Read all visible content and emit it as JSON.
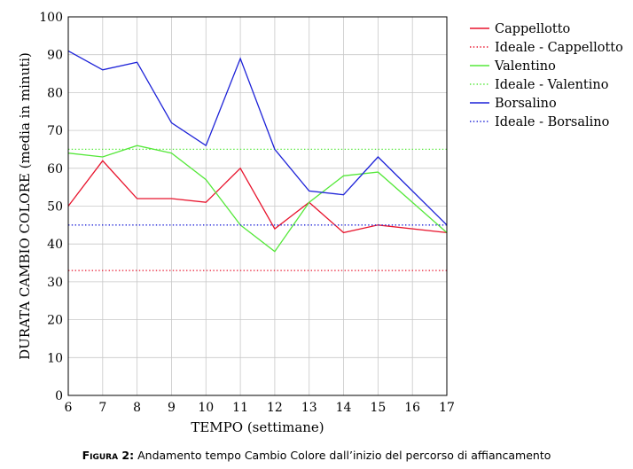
{
  "chart_data": {
    "type": "line",
    "title": "",
    "xlabel": "TEMPO (settimane)",
    "ylabel": "DURATA CAMBIO COLORE (media in minuti)",
    "xlim": [
      6,
      17
    ],
    "ylim": [
      0,
      100
    ],
    "x_ticks": [
      "6",
      "7",
      "8",
      "9",
      "10",
      "11",
      "12",
      "13",
      "14",
      "15",
      "16",
      "17"
    ],
    "y_ticks": [
      "0",
      "10",
      "20",
      "30",
      "40",
      "50",
      "60",
      "70",
      "80",
      "90",
      "100"
    ],
    "grid": true,
    "legend_position": "outside-right-top",
    "series": [
      {
        "name": "Cappellotto",
        "color": "#e8142d",
        "style": "solid",
        "x": [
          6,
          7,
          8,
          9,
          10,
          11,
          12,
          13,
          14,
          15,
          17
        ],
        "y": [
          50,
          62,
          52,
          52,
          51,
          60,
          44,
          51,
          43,
          45,
          43
        ]
      },
      {
        "name": "Ideale - Cappellotto",
        "color": "#e8142d",
        "style": "dotted",
        "x": [
          6,
          17
        ],
        "y": [
          33,
          33
        ]
      },
      {
        "name": "Valentino",
        "color": "#55e83a",
        "style": "solid",
        "x": [
          6,
          7,
          8,
          9,
          10,
          11,
          12,
          13,
          14,
          15,
          17
        ],
        "y": [
          64,
          63,
          66,
          64,
          57,
          45,
          38,
          51,
          58,
          59,
          43
        ]
      },
      {
        "name": "Ideale - Valentino",
        "color": "#55e83a",
        "style": "dotted",
        "x": [
          6,
          17
        ],
        "y": [
          65,
          65
        ]
      },
      {
        "name": "Borsalino",
        "color": "#1d22d8",
        "style": "solid",
        "x": [
          6,
          7,
          8,
          9,
          10,
          11,
          12,
          13,
          14,
          15,
          17
        ],
        "y": [
          91,
          86,
          88,
          72,
          66,
          89,
          65,
          54,
          53,
          63,
          45
        ]
      },
      {
        "name": "Ideale - Borsalino",
        "color": "#1d22d8",
        "style": "dotted",
        "x": [
          6,
          17
        ],
        "y": [
          45,
          45
        ]
      }
    ]
  },
  "caption": {
    "label": "Figura 2:",
    "text": "Andamento tempo Cambio Colore dall’inizio del percorso di affiancamento"
  }
}
